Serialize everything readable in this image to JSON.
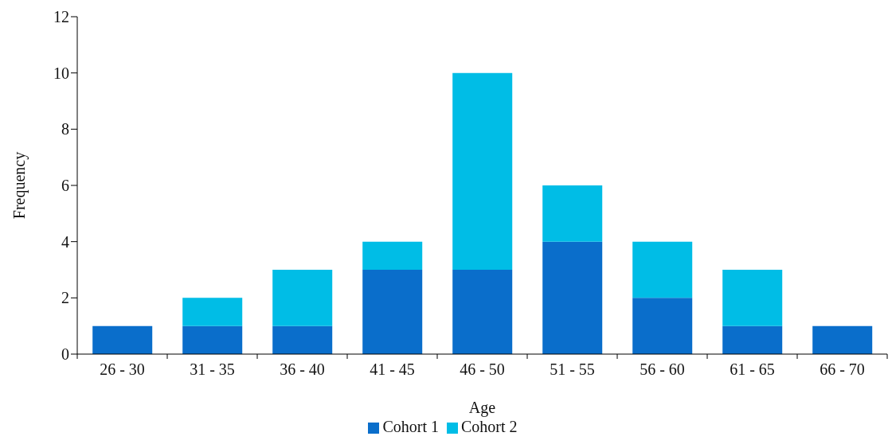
{
  "chart_data": {
    "type": "bar",
    "stacked": true,
    "xlabel": "Age",
    "ylabel": "Frequency",
    "categories": [
      "26 - 30",
      "31 - 35",
      "36 - 40",
      "41 - 45",
      "46 - 50",
      "51 - 55",
      "56 - 60",
      "61 - 65",
      "66 - 70"
    ],
    "series": [
      {
        "name": "Cohort 1",
        "color": "#0a6ecb",
        "values": [
          1,
          1,
          1,
          3,
          3,
          4,
          2,
          1,
          1
        ]
      },
      {
        "name": "Cohort 2",
        "color": "#00bde6",
        "values": [
          0,
          1,
          2,
          1,
          7,
          2,
          2,
          2,
          0
        ]
      }
    ],
    "ylim": [
      0,
      12
    ],
    "yticks": [
      0,
      2,
      4,
      6,
      8,
      10,
      12
    ],
    "grid": false,
    "legend": "bottom"
  }
}
